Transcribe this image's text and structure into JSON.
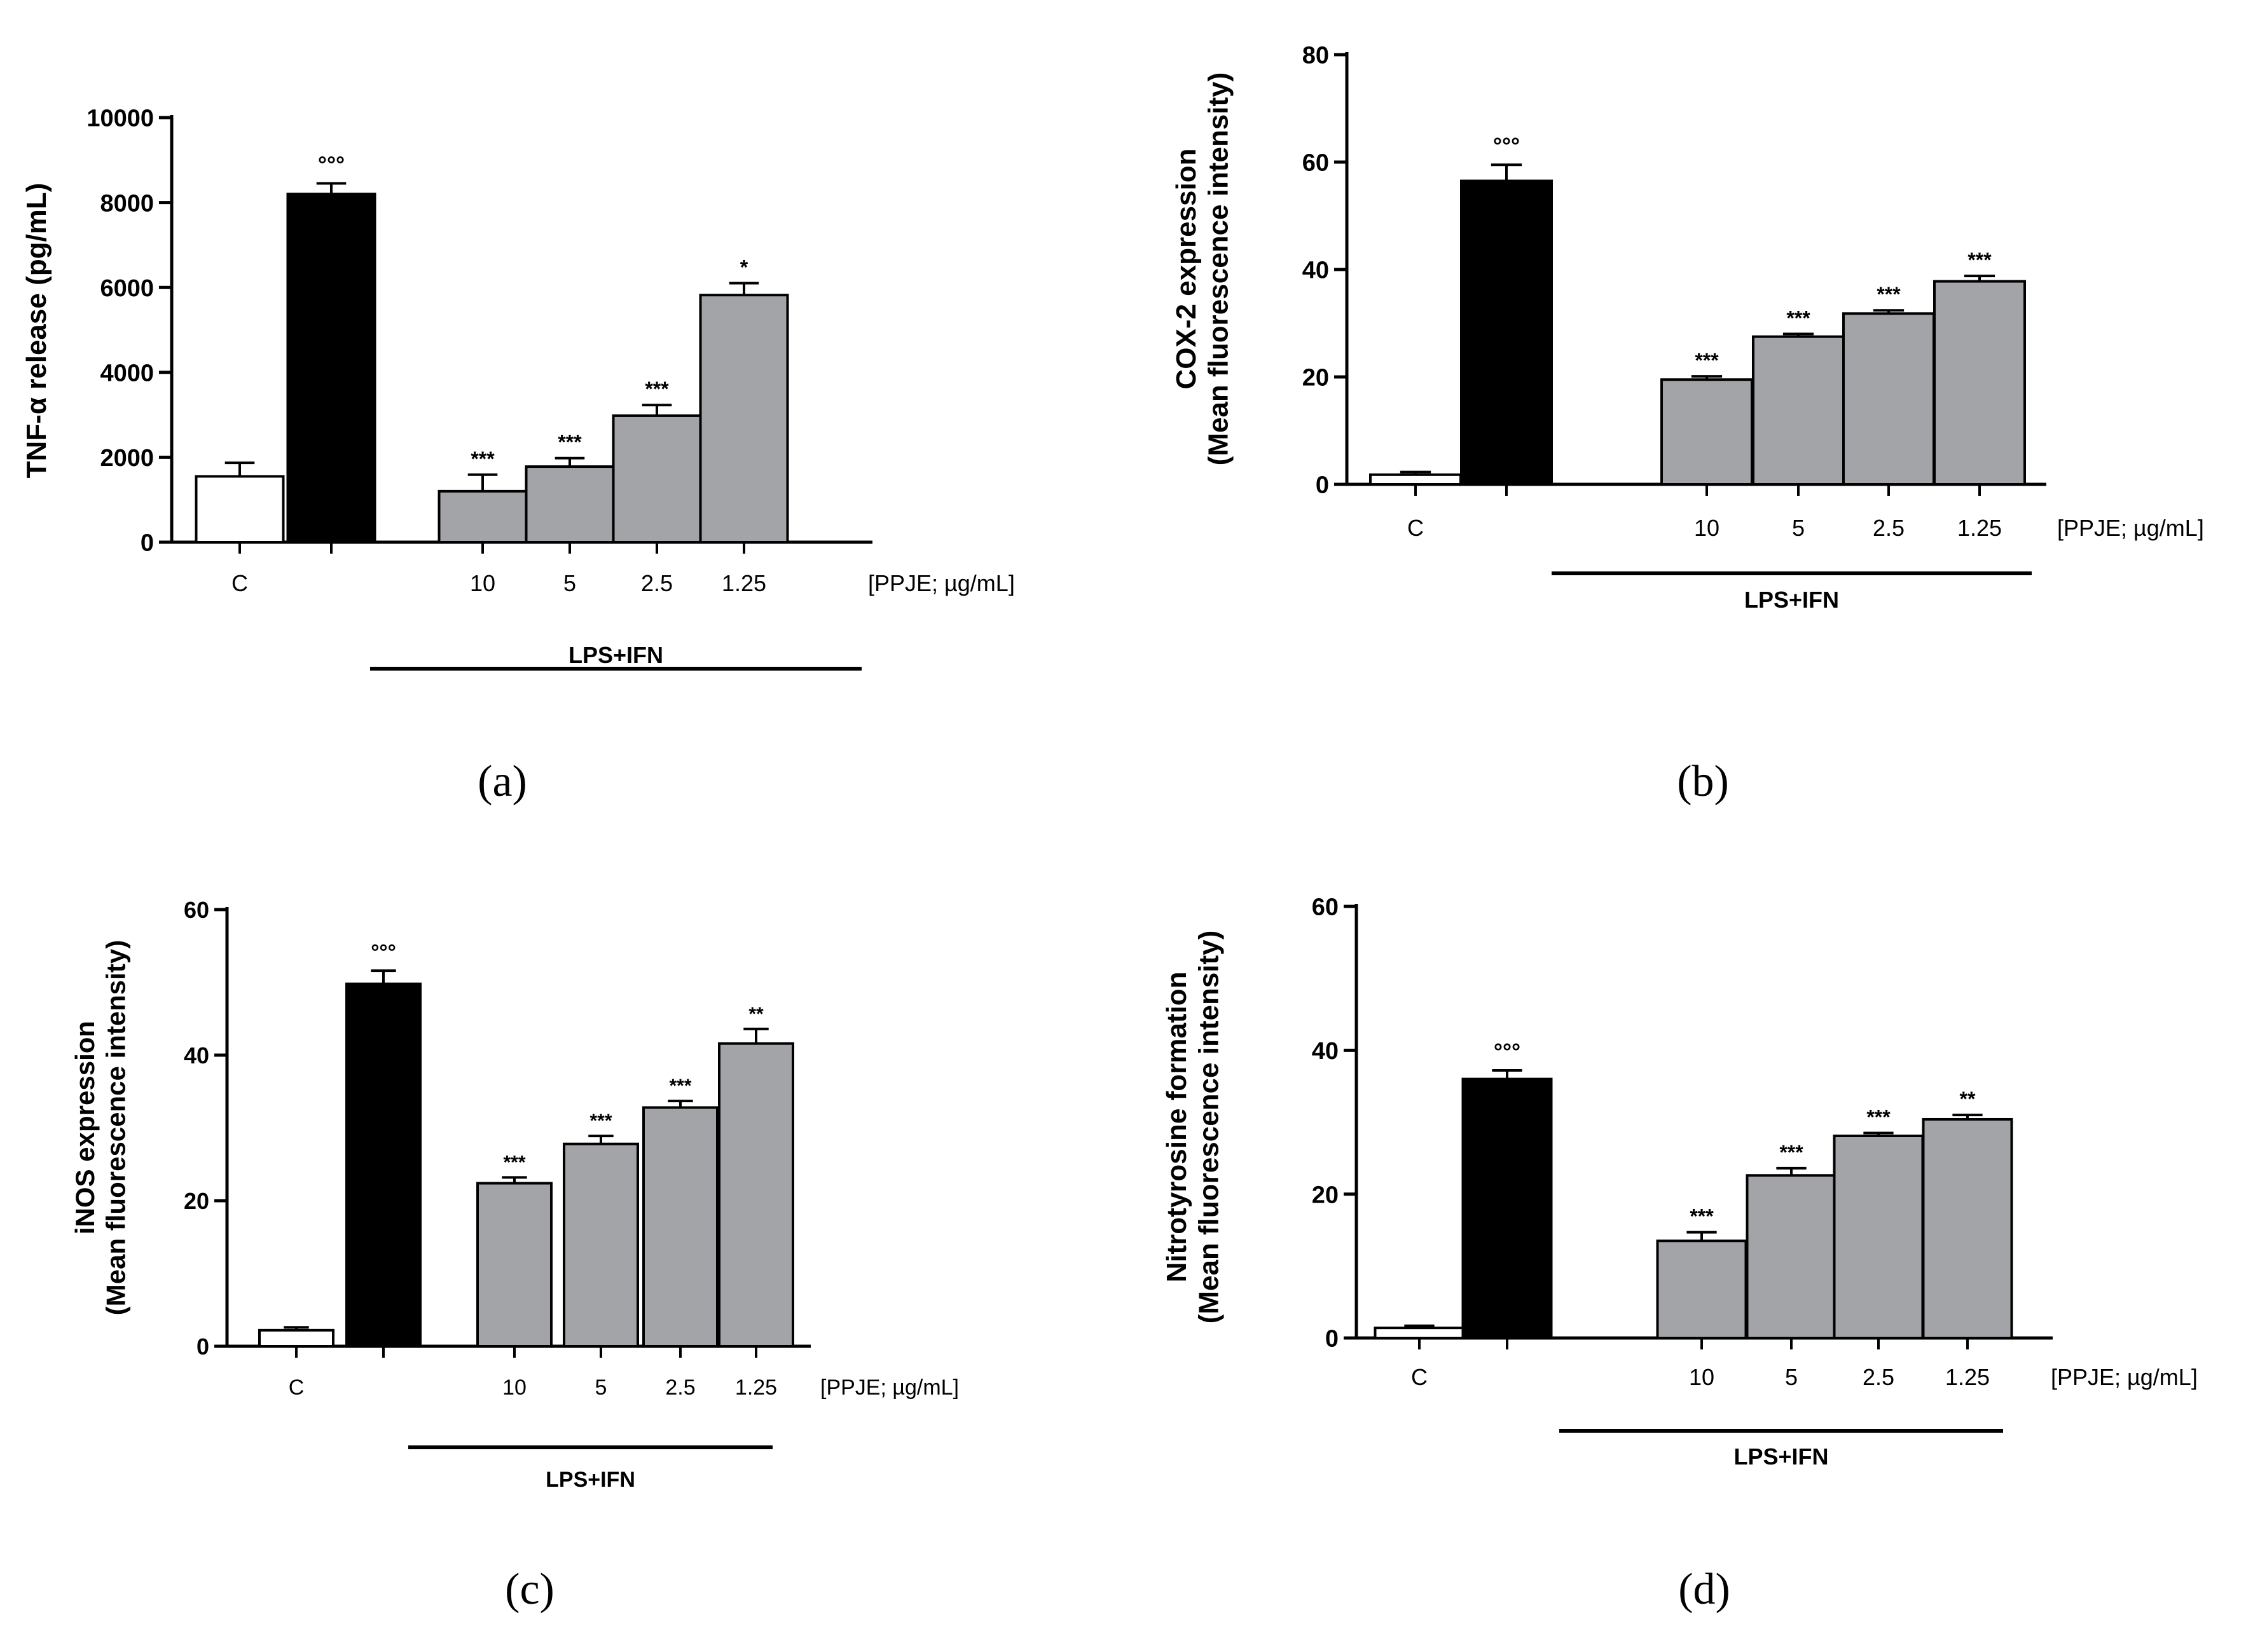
{
  "colors": {
    "control": "#ffffff",
    "lps": "#000000",
    "treatment": "#a3a4a8",
    "stroke": "#000000"
  },
  "chart_data": [
    {
      "type": "bar",
      "panel_label": "(a)",
      "ylabel": "TNF-α release (pg/mL)",
      "ylim": [
        0,
        10000
      ],
      "yticks": [
        "0",
        "2000",
        "4000",
        "6000",
        "8000",
        "10000"
      ],
      "ytick_values": [
        0,
        2000,
        4000,
        6000,
        8000,
        10000
      ],
      "categories": [
        "C",
        "",
        "10",
        "5",
        "2.5",
        "1.25"
      ],
      "values": [
        1550,
        8200,
        1200,
        1780,
        2980,
        5820
      ],
      "errors": [
        320,
        250,
        390,
        200,
        250,
        280
      ],
      "annotations": [
        "",
        "°°°",
        "***",
        "***",
        "***",
        "*"
      ],
      "dose_label": "[PPJE; µg/mL]",
      "group_label": "LPS+IFN"
    },
    {
      "type": "bar",
      "panel_label": "(b)",
      "ylabel": [
        "COX-2 expression",
        "(Mean fluorescence intensity)"
      ],
      "ylim": [
        0,
        80
      ],
      "yticks": [
        "0",
        "20",
        "40",
        "60",
        "80"
      ],
      "ytick_values": [
        0,
        20,
        40,
        60,
        80
      ],
      "categories": [
        "C",
        "",
        "10",
        "5",
        "2.5",
        "1.25"
      ],
      "values": [
        1.8,
        56.5,
        19.5,
        27.5,
        31.8,
        37.8
      ],
      "errors": [
        0.5,
        3.0,
        0.6,
        0.5,
        0.6,
        1.0
      ],
      "annotations": [
        "",
        "°°°",
        "***",
        "***",
        "***",
        "***"
      ],
      "dose_label": "[PPJE; µg/mL]",
      "group_label": "LPS+IFN"
    },
    {
      "type": "bar",
      "panel_label": "(c)",
      "ylabel": [
        "iNOS expression",
        "(Mean fluorescence intensity)"
      ],
      "ylim": [
        0,
        60
      ],
      "yticks": [
        "0",
        "20",
        "40",
        "60"
      ],
      "ytick_values": [
        0,
        20,
        40,
        60
      ],
      "categories": [
        "C",
        "",
        "10",
        "5",
        "2.5",
        "1.25"
      ],
      "values": [
        2.2,
        49.8,
        22.4,
        27.8,
        32.8,
        41.6
      ],
      "errors": [
        0.4,
        1.8,
        0.8,
        1.1,
        0.9,
        2.0
      ],
      "annotations": [
        "",
        "°°°",
        "***",
        "***",
        "***",
        "**"
      ],
      "dose_label": "[PPJE; µg/mL]",
      "group_label": "LPS+IFN"
    },
    {
      "type": "bar",
      "panel_label": "(d)",
      "ylabel": [
        "Nitrotyrosine formation",
        "(Mean fluorescence intensity)"
      ],
      "ylim": [
        0,
        60
      ],
      "yticks": [
        "0",
        "20",
        "40",
        "60"
      ],
      "ytick_values": [
        0,
        20,
        40,
        60
      ],
      "categories": [
        "C",
        "",
        "10",
        "5",
        "2.5",
        "1.25"
      ],
      "values": [
        1.4,
        36.0,
        13.5,
        22.6,
        28.1,
        30.4
      ],
      "errors": [
        0.3,
        1.2,
        1.2,
        1.0,
        0.4,
        0.6
      ],
      "annotations": [
        "",
        "°°°",
        "***",
        "***",
        "***",
        "**"
      ],
      "dose_label": "[PPJE; µg/mL]",
      "group_label": "LPS+IFN"
    }
  ]
}
